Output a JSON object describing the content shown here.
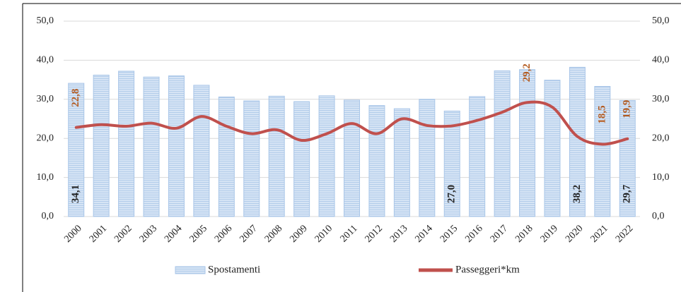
{
  "chart_data": {
    "type": "bar_line",
    "categories": [
      "2000",
      "2001",
      "2002",
      "2003",
      "2004",
      "2005",
      "2006",
      "2007",
      "2008",
      "2009",
      "2010",
      "2011",
      "2012",
      "2013",
      "2014",
      "2015",
      "2016",
      "2017",
      "2018",
      "2019",
      "2020",
      "2021",
      "2022"
    ],
    "series": [
      {
        "name": "Spostamenti",
        "type": "bar",
        "color": "#a9c6e8",
        "values": [
          34.1,
          36.2,
          37.2,
          35.7,
          36.0,
          33.6,
          30.6,
          29.6,
          30.8,
          29.4,
          30.9,
          29.8,
          28.4,
          27.6,
          30.0,
          27.0,
          30.7,
          37.3,
          37.6,
          34.9,
          38.2,
          33.3,
          29.7
        ],
        "value_labels": [
          "34,1",
          null,
          null,
          null,
          null,
          null,
          null,
          null,
          null,
          null,
          null,
          null,
          null,
          null,
          null,
          "27,0",
          null,
          null,
          null,
          null,
          "38,2",
          null,
          "29,7"
        ]
      },
      {
        "name": "Passeggeri*km",
        "type": "line",
        "axis": "y2",
        "color": "#c0504d",
        "values": [
          22.8,
          23.5,
          23.1,
          23.9,
          22.6,
          25.6,
          23.1,
          21.2,
          22.2,
          19.5,
          21.2,
          23.8,
          21.2,
          25.0,
          23.3,
          23.2,
          24.6,
          26.7,
          29.2,
          28.0,
          20.5,
          18.5,
          19.9
        ],
        "value_labels": [
          "22,8",
          null,
          null,
          null,
          null,
          null,
          null,
          null,
          null,
          null,
          null,
          null,
          null,
          null,
          null,
          null,
          null,
          null,
          "29,2",
          null,
          null,
          "18,5",
          "19,9"
        ]
      }
    ],
    "ylim": [
      0,
      50
    ],
    "yticks": [
      {
        "value": 0,
        "label": "0,0"
      },
      {
        "value": 10,
        "label": "10,0"
      },
      {
        "value": 20,
        "label": "20,0"
      },
      {
        "value": 30,
        "label": "30,0"
      },
      {
        "value": 40,
        "label": "40,0"
      },
      {
        "value": 50,
        "label": "50,0"
      }
    ],
    "y2lim": [
      0,
      50
    ],
    "y2ticks": [
      {
        "value": 0,
        "label": "0,0"
      },
      {
        "value": 10,
        "label": "10,0"
      },
      {
        "value": 20,
        "label": "20,0"
      },
      {
        "value": 30,
        "label": "30,0"
      },
      {
        "value": 40,
        "label": "40,0"
      },
      {
        "value": 50,
        "label": "50,0"
      }
    ],
    "grid": true,
    "legend": "bottom"
  }
}
